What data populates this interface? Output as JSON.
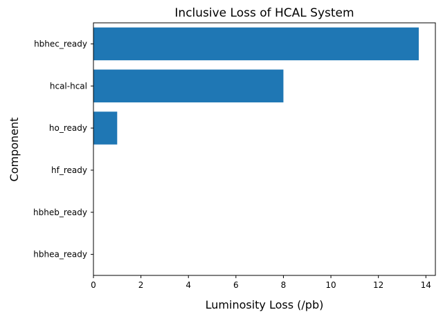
{
  "chart_data": {
    "type": "bar",
    "orientation": "horizontal",
    "title": "Inclusive Loss of HCAL System",
    "xlabel": "Luminosity Loss (/pb)",
    "ylabel": "Component",
    "categories": [
      "hbhea_ready",
      "hbheb_ready",
      "hf_ready",
      "ho_ready",
      "hcal-hcal",
      "hbhec_ready"
    ],
    "values": [
      0,
      0,
      0,
      1.0,
      8.0,
      13.7
    ],
    "xlim": [
      0,
      14.4
    ],
    "xticks": [
      "0",
      "2",
      "4",
      "6",
      "8",
      "10",
      "12",
      "14"
    ],
    "grid": false,
    "bar_color": "#1f77b4"
  }
}
